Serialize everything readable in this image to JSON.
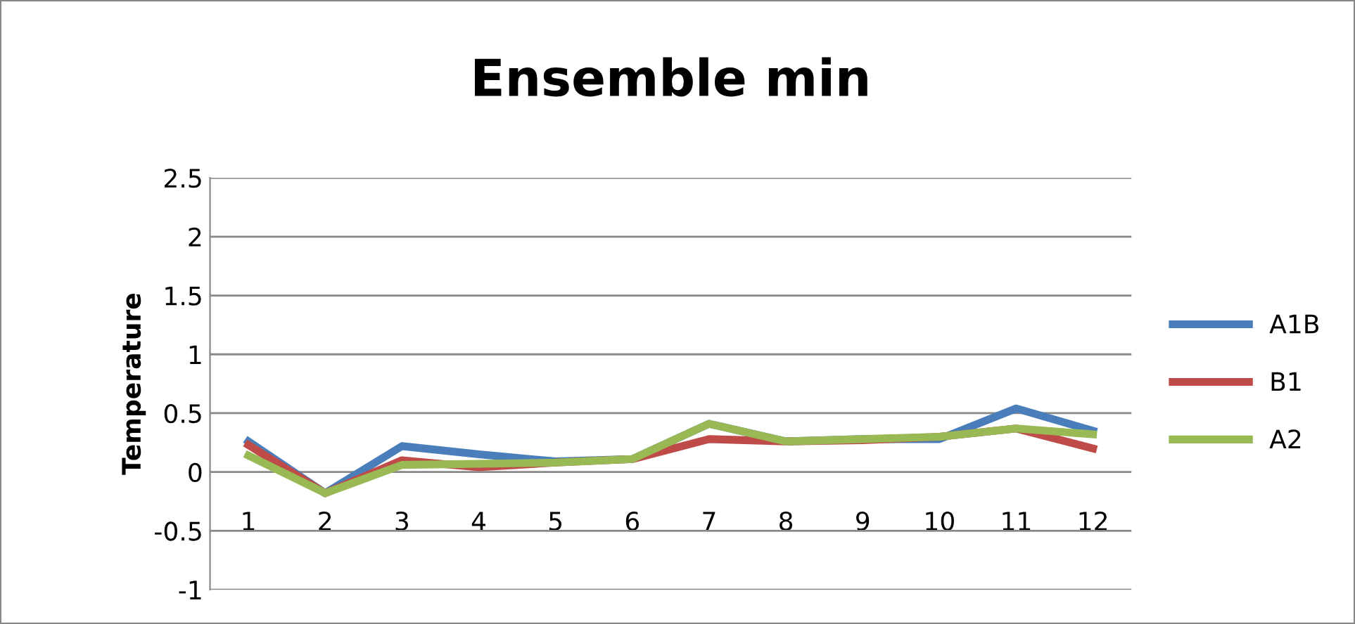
{
  "chart_data": {
    "type": "line",
    "title": "Ensemble min",
    "ylabel": "Temperature",
    "categories": [
      "1",
      "2",
      "3",
      "4",
      "5",
      "6",
      "7",
      "8",
      "9",
      "10",
      "11",
      "12"
    ],
    "series": [
      {
        "name": "A1B",
        "color": "#4a7ebb",
        "values": [
          0.26,
          -0.18,
          0.22,
          0.15,
          0.09,
          0.11,
          0.41,
          0.26,
          0.28,
          0.28,
          0.54,
          0.35
        ]
      },
      {
        "name": "B1",
        "color": "#be4b48",
        "values": [
          0.23,
          -0.18,
          0.1,
          0.04,
          0.08,
          0.11,
          0.28,
          0.26,
          0.27,
          0.3,
          0.37,
          0.2
        ]
      },
      {
        "name": "A2",
        "color": "#98b954",
        "values": [
          0.14,
          -0.18,
          0.06,
          0.07,
          0.08,
          0.11,
          0.41,
          0.26,
          0.28,
          0.3,
          0.37,
          0.32
        ]
      }
    ],
    "ylim": [
      -1,
      2.5
    ],
    "yticks": [
      -1,
      -0.5,
      0,
      0.5,
      1,
      1.5,
      2,
      2.5
    ],
    "grid": "y",
    "legend": "right",
    "marker": "none",
    "line_style": "solid"
  }
}
